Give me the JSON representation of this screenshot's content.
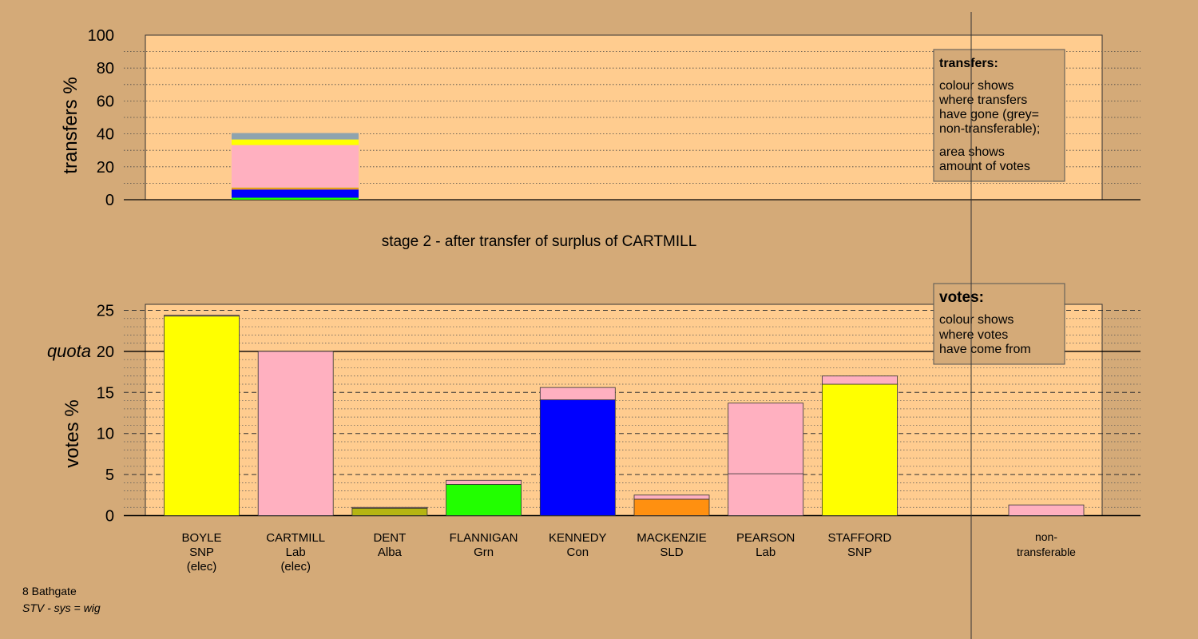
{
  "colors": {
    "background": "#D4AA78",
    "panel": "#FFCC8F",
    "SNP": "#FFFF00",
    "Lab": "#FFB0C0",
    "Alba": "#B5B513",
    "Grn": "#22FF00",
    "Con": "#0000FF",
    "SLD": "#FF9010",
    "nontransferable": "#8FA3AE"
  },
  "footer": {
    "line1": "8 Bathgate",
    "line2": "STV - sys = wig"
  },
  "stage_title": "stage 2 - after transfer of surplus of CARTMILL",
  "legend_transfers": {
    "heading": "transfers:",
    "lines1": [
      "colour shows",
      "where transfers",
      "have gone (grey=",
      "non-transferable);"
    ],
    "lines2": [
      "area shows",
      "amount of votes"
    ]
  },
  "legend_votes": {
    "heading": "votes:",
    "lines": [
      "colour shows",
      "where votes",
      "have come from"
    ]
  },
  "chart_data": [
    {
      "type": "bar",
      "ylabel": "transfers %",
      "ylim": [
        0,
        100
      ],
      "yticks": [
        0,
        20,
        40,
        60,
        80,
        100
      ],
      "grid": "dotted every 10",
      "bars": [
        {
          "candidate": "CARTMILL",
          "segments": [
            {
              "to": "FLANNIGAN",
              "party": "Grn",
              "value": 1.2
            },
            {
              "to": "KENNEDY",
              "party": "Con",
              "value": 5.0
            },
            {
              "to": "MACKENZIE",
              "party": "SLD",
              "value": 0.8
            },
            {
              "to": "DENT",
              "party": "Alba",
              "value": 0.4
            },
            {
              "to": "PEARSON",
              "party": "Lab",
              "value": 25.8
            },
            {
              "to": "STAFFORD",
              "party": "SNP",
              "value": 3.0
            },
            {
              "to": "BOYLE",
              "party": "SNP",
              "value": 0.4
            },
            {
              "to": "non-transferable",
              "party": "nontransferable",
              "value": 3.9
            }
          ]
        }
      ]
    },
    {
      "type": "bar",
      "ylabel": "votes %",
      "ylim": [
        0,
        25
      ],
      "yticks": [
        0,
        5,
        10,
        15,
        20,
        25
      ],
      "quota": 20,
      "quota_label": "quota",
      "grid": "dashed every 5, dotted every 1",
      "categories": [
        {
          "name": "BOYLE",
          "party": "SNP",
          "note": "(elec)",
          "segments": [
            {
              "party": "SNP",
              "value": 24.3
            },
            {
              "party": "Lab",
              "value": 0.1
            }
          ]
        },
        {
          "name": "CARTMILL",
          "party": "Lab",
          "note": "(elec)",
          "segments": [
            {
              "party": "Lab",
              "value": 20.0
            }
          ]
        },
        {
          "name": "DENT",
          "party": "Alba",
          "note": "",
          "segments": [
            {
              "party": "Alba",
              "value": 0.9
            },
            {
              "party": "Lab",
              "value": 0.1
            }
          ]
        },
        {
          "name": "FLANNIGAN",
          "party": "Grn",
          "note": "",
          "segments": [
            {
              "party": "Grn",
              "value": 3.8
            },
            {
              "party": "Lab",
              "value": 0.5
            }
          ]
        },
        {
          "name": "KENNEDY",
          "party": "Con",
          "note": "",
          "segments": [
            {
              "party": "Con",
              "value": 14.1
            },
            {
              "party": "Lab",
              "value": 1.5
            }
          ]
        },
        {
          "name": "MACKENZIE",
          "party": "SLD",
          "note": "",
          "segments": [
            {
              "party": "SLD",
              "value": 2.0
            },
            {
              "party": "Lab",
              "value": 0.5
            }
          ]
        },
        {
          "name": "PEARSON",
          "party": "Lab",
          "note": "",
          "segments": [
            {
              "party": "Lab",
              "value": 5.1
            },
            {
              "party": "Lab",
              "value": 8.6
            }
          ]
        },
        {
          "name": "STAFFORD",
          "party": "SNP",
          "note": "",
          "segments": [
            {
              "party": "SNP",
              "value": 16.0
            },
            {
              "party": "Lab",
              "value": 1.0
            }
          ]
        }
      ],
      "nontransferable": {
        "label_lines": [
          "non-",
          "transferable"
        ],
        "segments": [
          {
            "party": "Lab",
            "value": 1.3
          }
        ]
      }
    }
  ]
}
